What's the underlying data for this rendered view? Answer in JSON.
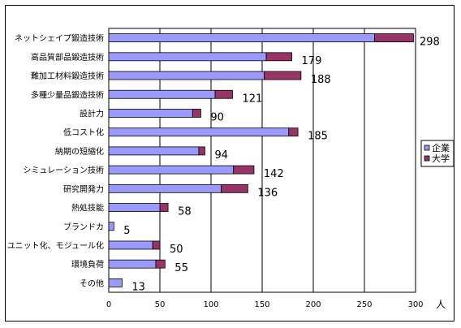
{
  "chart_data": {
    "type": "bar",
    "orientation": "horizontal",
    "stacked": true,
    "categories": [
      "ネットシェイプ鍛造技術",
      "高品質部品鍛造技術",
      "難加工材料鍛造技術",
      "多種少量品鍛造技術",
      "設計力",
      "低コスト化",
      "納期の短縮化",
      "シミュレーション技術",
      "研究開発力",
      "熱処技能",
      "ブランドカ",
      "ユニット化、モジュール化",
      "環境負荷",
      "その他"
    ],
    "series": [
      {
        "name": "企業",
        "color": "#9999ff",
        "values": [
          260,
          154,
          152,
          104,
          82,
          176,
          88,
          122,
          110,
          50,
          5,
          43,
          46,
          13
        ]
      },
      {
        "name": "大学",
        "color": "#993366",
        "values": [
          38,
          25,
          36,
          17,
          8,
          9,
          6,
          20,
          26,
          8,
          0,
          7,
          9,
          0
        ]
      }
    ],
    "totals": [
      298,
      179,
      188,
      121,
      90,
      185,
      94,
      142,
      136,
      58,
      5,
      50,
      55,
      13
    ],
    "xlim": [
      0,
      300
    ],
    "xticks": [
      0,
      50,
      100,
      150,
      200,
      250,
      300
    ],
    "xlabel": "人",
    "legend_position": "right",
    "grid": "vertical"
  }
}
